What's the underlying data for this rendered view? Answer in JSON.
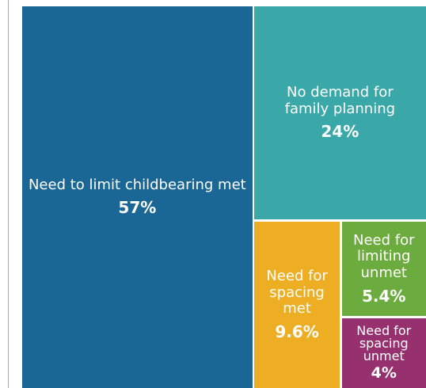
{
  "chart_data": {
    "type": "treemap",
    "categories": [
      "Need to limit childbearing met",
      "No demand for family planning",
      "Need for spacing met",
      "Need for limiting unmet",
      "Need for spacing unmet"
    ],
    "values": [
      57,
      24,
      9.6,
      5.4,
      4
    ],
    "value_labels": [
      "57%",
      "24%",
      "9.6%",
      "5.4%",
      "4%"
    ],
    "colors": [
      "#1a6796",
      "#3aa8a8",
      "#eeae24",
      "#6cab3e",
      "#97306e"
    ]
  }
}
